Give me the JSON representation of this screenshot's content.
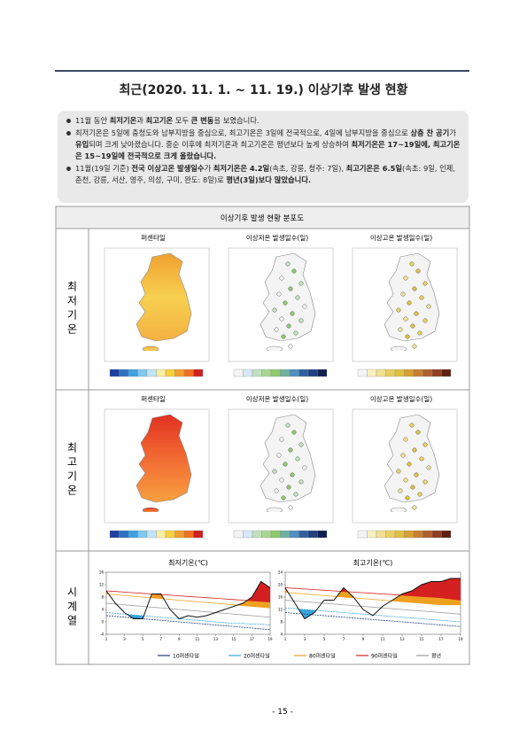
{
  "title": "최근(2020. 11. 1. ~ 11. 19.) 이상기후 발생 현황",
  "bullets": [
    [
      {
        "text": "11월 동안 ",
        "bold": false
      },
      {
        "text": "최저기온",
        "bold": true
      },
      {
        "text": "과 ",
        "bold": false
      },
      {
        "text": "최고기온",
        "bold": true
      },
      {
        "text": " 모두 ",
        "bold": false
      },
      {
        "text": "큰 변동",
        "bold": true
      },
      {
        "text": "을 보였습니다.",
        "bold": false
      }
    ],
    [
      {
        "text": "최저기온은 5일에 충청도와 남부지방을 중심으로, 최고기온은 3일에 전국적으로, 4일에 남부지방을 중심으로 ",
        "bold": false
      },
      {
        "text": "상층 찬 공기",
        "bold": true
      },
      {
        "text": "가 ",
        "bold": false
      },
      {
        "text": "유입",
        "bold": true
      },
      {
        "text": "되며 크게 낮아졌습니다. 중순 이후에 최저기온과 최고기온은 평년보다 높게 상승하여 ",
        "bold": false
      },
      {
        "text": "최저기온은 17~19일에, 최고기온은 15~19일에 전국적으로 크게 올랐습니다.",
        "bold": true
      }
    ],
    [
      {
        "text": "11월(19일 기준) ",
        "bold": false
      },
      {
        "text": "전국 이상고온 발생일수",
        "bold": true
      },
      {
        "text": "가 ",
        "bold": false
      },
      {
        "text": "최저기온은 4.2일",
        "bold": true
      },
      {
        "text": "(속초, 강릉, 청주: 7일), ",
        "bold": false
      },
      {
        "text": "최고기온은 6.5일",
        "bold": true
      },
      {
        "text": "(속초: 9일, 인제, 춘천, 강릉, 서산, 영주, 의성, 구미, 완도: 8일)로 ",
        "bold": false
      },
      {
        "text": "평년(3일)보다 많았습니다.",
        "bold": true
      }
    ]
  ],
  "figure": {
    "title": "이상기후 발생 현황 분포도",
    "rows": [
      {
        "label": "최저기온",
        "columns": [
          "퍼센타일",
          "이상저온 발생일수(일)",
          "이상고온 발생일수(일)"
        ]
      },
      {
        "label": "최고기온",
        "columns": [
          "퍼센타일",
          "이상저온 발생일수(일)",
          "이상고온 발생일수(일)"
        ]
      }
    ],
    "timeseries_label": "시계열",
    "charts": [
      {
        "type": "line",
        "title": "최저기온(℃)",
        "x": [
          1,
          2,
          3,
          4,
          5,
          6,
          7,
          8,
          9,
          10,
          11,
          12,
          13,
          14,
          15,
          16,
          17,
          18,
          19
        ],
        "xticks": [
          1,
          3,
          5,
          7,
          9,
          11,
          13,
          15,
          17,
          19
        ],
        "xlim": [
          1,
          19
        ],
        "ylim": [
          -4,
          16
        ],
        "yticks": [
          -4,
          0,
          4,
          8,
          12,
          16
        ],
        "observed": [
          10,
          6,
          3,
          1,
          1,
          9,
          9,
          4,
          1,
          2,
          1.5,
          2,
          3,
          4,
          5,
          6,
          8,
          13,
          11
        ],
        "series": [
          {
            "name": "10퍼센타일",
            "color": "#1f3a7a",
            "values": [
              2,
              1.75,
              1.5,
              1.25,
              1,
              0.75,
              0.5,
              0.25,
              0,
              -0.25,
              -0.5,
              -0.75,
              -1,
              -1.25,
              -1.5,
              -1.75,
              -2,
              -2.25,
              -2.5
            ]
          },
          {
            "name": "20퍼센타일",
            "color": "#3aa6dd",
            "values": [
              3,
              2.75,
              2.5,
              2.25,
              2,
              1.75,
              1.5,
              1.25,
              1,
              0.75,
              0.5,
              0.25,
              0,
              -0.25,
              -0.5,
              -0.5,
              -0.75,
              -0.75,
              -1
            ]
          },
          {
            "name": "80퍼센타일",
            "color": "#f0a020",
            "values": [
              9,
              8.75,
              8.5,
              8.25,
              8,
              7.75,
              7.5,
              7.25,
              7,
              6.75,
              6.5,
              6.25,
              6,
              5.75,
              5.5,
              5.25,
              5,
              4.75,
              4.5
            ]
          },
          {
            "name": "90퍼센타일",
            "color": "#d42020",
            "values": [
              10,
              9.8,
              9.6,
              9.4,
              9.2,
              9,
              8.8,
              8.6,
              8.4,
              8.2,
              8,
              7.8,
              7.6,
              7.4,
              7.2,
              7,
              6.8,
              6.6,
              6.4
            ]
          },
          {
            "name": "평년",
            "color": "#999999",
            "values": [
              6,
              5.75,
              5.5,
              5.25,
              5,
              4.75,
              4.5,
              4.25,
              4,
              3.75,
              3.5,
              3.25,
              3,
              2.75,
              2.5,
              2.25,
              2,
              1.75,
              1.5
            ]
          }
        ]
      },
      {
        "type": "line",
        "title": "최고기온(℃)",
        "x": [
          1,
          2,
          3,
          4,
          5,
          6,
          7,
          8,
          9,
          10,
          11,
          12,
          13,
          14,
          15,
          16,
          17,
          18,
          19
        ],
        "xticks": [
          1,
          3,
          5,
          7,
          9,
          11,
          13,
          15,
          17,
          19
        ],
        "xlim": [
          1,
          19
        ],
        "ylim": [
          4,
          24
        ],
        "yticks": [
          4,
          8,
          12,
          16,
          20,
          24
        ],
        "observed": [
          19,
          14,
          9,
          11,
          15,
          15,
          19,
          16,
          12,
          10,
          13,
          15,
          17,
          18,
          20,
          21,
          21,
          22,
          22
        ],
        "series": [
          {
            "name": "10퍼센타일",
            "color": "#1f3a7a",
            "values": [
              11,
              10.75,
              10.5,
              10.25,
              10,
              9.75,
              9.5,
              9.25,
              9,
              8.75,
              8.5,
              8.25,
              8,
              7.75,
              7.5,
              7.25,
              7,
              6.75,
              6.5
            ]
          },
          {
            "name": "20퍼센타일",
            "color": "#3aa6dd",
            "values": [
              12.5,
              12.25,
              12,
              11.75,
              11.5,
              11.25,
              11,
              10.75,
              10.5,
              10.25,
              10,
              9.75,
              9.5,
              9.25,
              9,
              8.75,
              8.5,
              8.25,
              8
            ]
          },
          {
            "name": "80퍼센타일",
            "color": "#f0a020",
            "values": [
              17.5,
              17.25,
              17,
              16.75,
              16.5,
              16.25,
              16,
              15.75,
              15.5,
              15.25,
              15,
              14.75,
              14.5,
              14.25,
              14,
              13.75,
              13.5,
              13.5,
              13.5
            ]
          },
          {
            "name": "90퍼센타일",
            "color": "#d42020",
            "values": [
              19,
              18.8,
              18.6,
              18.4,
              18.2,
              18,
              17.8,
              17.6,
              17.4,
              17.2,
              17,
              16.8,
              16.6,
              16.4,
              16.2,
              16,
              15.8,
              15.4,
              15
            ]
          },
          {
            "name": "평년",
            "color": "#999999",
            "values": [
              15,
              14.75,
              14.5,
              14.25,
              14,
              13.75,
              13.5,
              13.25,
              13,
              12.75,
              12.5,
              12.25,
              12,
              11.75,
              11.5,
              11.25,
              11,
              10.75,
              10.5
            ]
          }
        ]
      }
    ]
  },
  "page_number": "- 15 -"
}
